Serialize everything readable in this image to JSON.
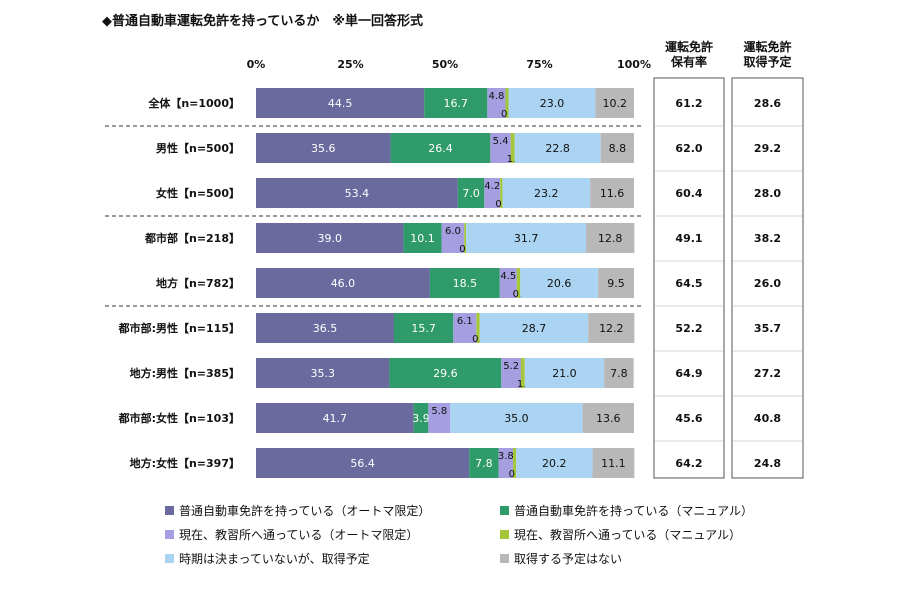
{
  "title": "◆普通自動車運転免許を持っているか　※単一回答形式",
  "table_headers": {
    "hold_rate": "運転免許\n保有率",
    "plan": "運転免許\n取得予定"
  },
  "colors": {
    "at_license": "#6a6a9e",
    "mt_license": "#2f9a6a",
    "school_at": "#a59ee0",
    "school_mt": "#a6c63a",
    "plan_future": "#aad4f2",
    "no_plan": "#b8b8b8"
  },
  "chart_data": {
    "type": "bar",
    "orientation": "horizontal",
    "stacked": true,
    "xlim": [
      0,
      100
    ],
    "x_ticks": [
      "0%",
      "25%",
      "50%",
      "75%",
      "100%"
    ],
    "grid": false,
    "legend_position": "bottom",
    "categories": [
      "全体【n=1000】",
      "男性【n=500】",
      "女性【n=500】",
      "都市部【n=218】",
      "地方【n=782】",
      "都市部:男性【n=115】",
      "地方:男性【n=385】",
      "都市部:女性【n=103】",
      "地方:女性【n=397】"
    ],
    "series": [
      {
        "name": "普通自動車免許を持っている（オートマ限定）",
        "color_key": "at_license",
        "values": [
          44.5,
          35.6,
          53.4,
          39.0,
          46.0,
          36.5,
          35.3,
          41.7,
          56.4
        ]
      },
      {
        "name": "普通自動車免許を持っている（マニュアル）",
        "color_key": "mt_license",
        "values": [
          16.7,
          26.4,
          7.0,
          10.1,
          18.5,
          15.7,
          29.6,
          3.9,
          7.8
        ]
      },
      {
        "name": "現在、教習所へ通っている（オートマ限定）",
        "color_key": "school_at",
        "values": [
          4.8,
          5.4,
          4.2,
          6.0,
          4.5,
          6.1,
          5.2,
          5.8,
          3.8
        ]
      },
      {
        "name": "現在、教習所へ通っている（マニュアル）",
        "color_key": "school_mt",
        "values": [
          0.8,
          1.0,
          0.6,
          0.5,
          0.9,
          0.9,
          1.0,
          0.0,
          0.8
        ]
      },
      {
        "name": "時期は決まっていないが、取得予定",
        "color_key": "plan_future",
        "values": [
          23.0,
          22.8,
          23.2,
          31.7,
          20.6,
          28.7,
          21.0,
          35.0,
          20.2
        ]
      },
      {
        "name": "取得する予定はない",
        "color_key": "no_plan",
        "values": [
          10.2,
          8.8,
          11.6,
          12.8,
          9.5,
          12.2,
          7.8,
          13.6,
          11.1
        ]
      }
    ],
    "hold_rate": [
      "61.2",
      "62.0",
      "60.4",
      "49.1",
      "64.5",
      "52.2",
      "64.9",
      "45.6",
      "64.2"
    ],
    "plan_rate": [
      "28.6",
      "29.2",
      "28.0",
      "38.2",
      "26.0",
      "35.7",
      "27.2",
      "40.8",
      "24.8"
    ],
    "group_separators_after": [
      0,
      2,
      4
    ]
  }
}
